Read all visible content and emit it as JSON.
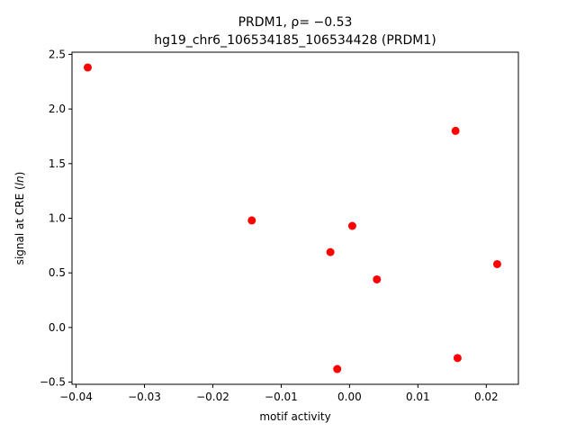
{
  "chart_data": {
    "type": "scatter",
    "title_line1": "PRDM1, ρ= −0.53",
    "title_line2": "hg19_chr6_106534185_106534428 (PRDM1)",
    "xlabel": "motif activity",
    "ylabel": "signal at CRE (ln)",
    "ylabel_parts": {
      "prefix": "signal at CRE (",
      "italic": "ln",
      "suffix": ")"
    },
    "xlim": [
      -0.0406,
      0.0247
    ],
    "ylim": [
      -0.52,
      2.52
    ],
    "x_ticks": [
      -0.04,
      -0.03,
      -0.02,
      -0.01,
      0.0,
      0.01,
      0.02
    ],
    "x_tick_labels": [
      "−0.04",
      "−0.03",
      "−0.02",
      "−0.01",
      "0.00",
      "0.01",
      "0.02"
    ],
    "y_ticks": [
      -0.5,
      0.0,
      0.5,
      1.0,
      1.5,
      2.0,
      2.5
    ],
    "y_tick_labels": [
      "−0.5",
      "0.0",
      "0.5",
      "1.0",
      "1.5",
      "2.0",
      "2.5"
    ],
    "point_color": "#ff0000",
    "grid": false,
    "points": [
      {
        "x": -0.0383,
        "y": 2.38
      },
      {
        "x": -0.0143,
        "y": 0.98
      },
      {
        "x": -0.0028,
        "y": 0.69
      },
      {
        "x": -0.0018,
        "y": -0.38
      },
      {
        "x": 0.0004,
        "y": 0.93
      },
      {
        "x": 0.004,
        "y": 0.44
      },
      {
        "x": 0.0155,
        "y": 1.8
      },
      {
        "x": 0.0158,
        "y": -0.28
      },
      {
        "x": 0.0216,
        "y": 0.58
      }
    ]
  }
}
